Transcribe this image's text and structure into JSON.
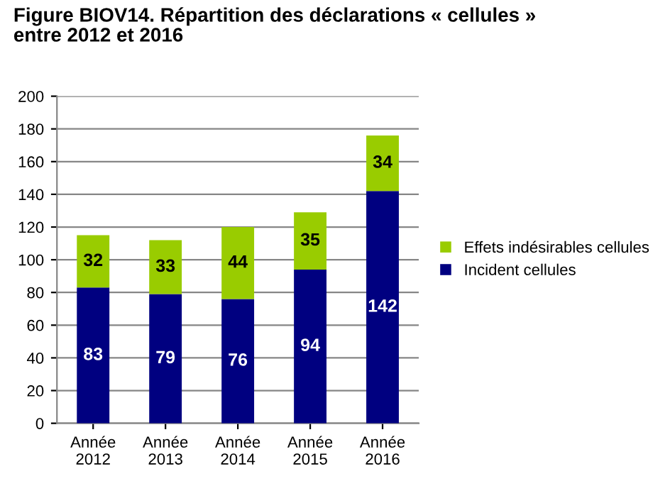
{
  "chart_data": {
    "type": "bar",
    "title": "Figure BIOV14. Répartition des déclarations « cellules »\nentre 2012 et 2016",
    "categories": [
      "Année\n2012",
      "Année\n2013",
      "Année\n2014",
      "Année\n2015",
      "Année\n2016"
    ],
    "stacked": true,
    "series": [
      {
        "name": "Incident cellules",
        "color": "#000080",
        "values": [
          83,
          79,
          76,
          94,
          142
        ]
      },
      {
        "name": "Effets indésirables cellules",
        "color": "#99cc00",
        "values": [
          32,
          33,
          44,
          35,
          34
        ]
      }
    ],
    "ylim": [
      0,
      200
    ],
    "yticks": [
      0,
      20,
      40,
      60,
      80,
      100,
      120,
      140,
      160,
      180,
      200
    ],
    "grid": "y",
    "legend": "right",
    "data_labels": true
  }
}
